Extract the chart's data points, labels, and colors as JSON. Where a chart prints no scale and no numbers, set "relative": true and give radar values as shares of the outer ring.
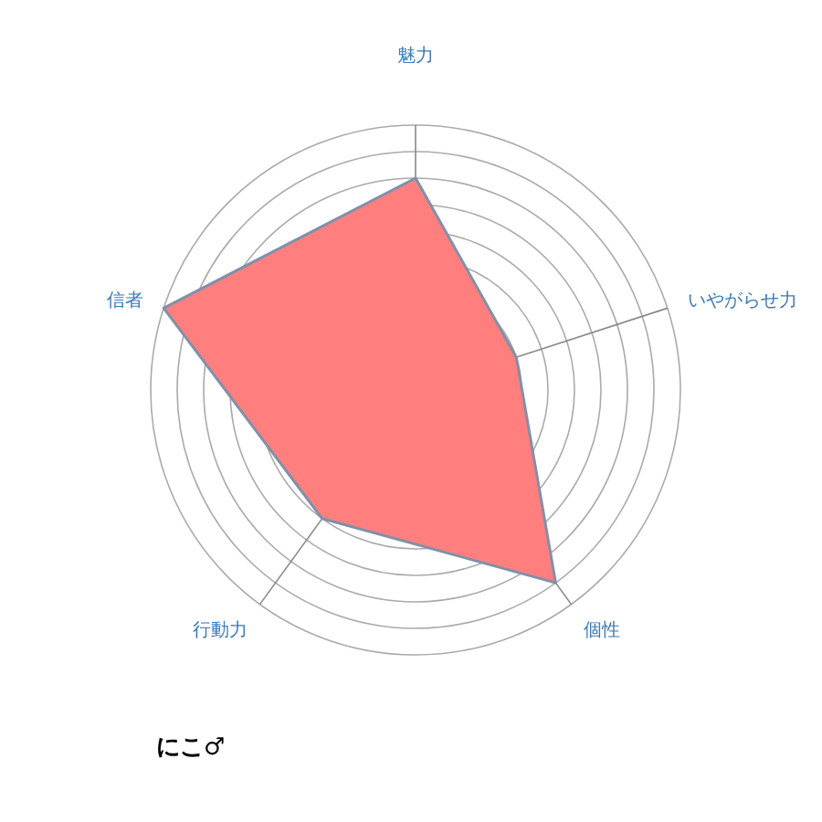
{
  "chart_data": {
    "type": "radar",
    "title": "にこ♂",
    "relative": true,
    "grid": true,
    "categories": [
      "魅力",
      "いやがらせ力",
      "個性",
      "行動力",
      "信者"
    ],
    "series": [
      {
        "color": "#ff7f7f",
        "values": [
          0.8,
          0.4,
          0.9,
          0.6,
          1.0
        ]
      }
    ]
  }
}
